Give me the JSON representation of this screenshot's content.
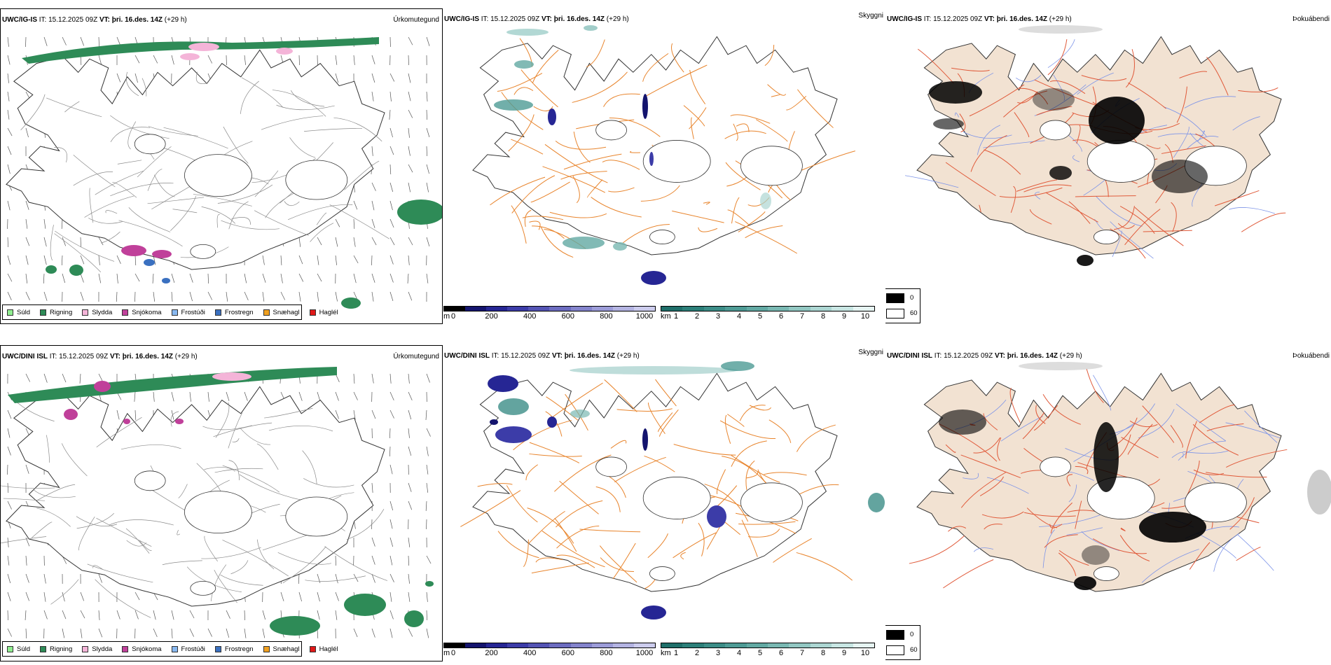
{
  "rows": [
    {
      "model": "UWC/IG-IS",
      "it_label": "IT:",
      "it_value": "15.12.2025 09Z",
      "vt_label": "VT:",
      "vt_value": "þri. 16.des. 14Z",
      "lead": "(+29 h)"
    },
    {
      "model": "UWC/DINI ISL",
      "it_label": "IT:",
      "it_value": "15.12.2025 09Z",
      "vt_label": "VT:",
      "vt_value": "þri. 16.des. 14Z",
      "lead": "(+29 h)"
    }
  ],
  "panel_titles": {
    "precip_type": "Úrkomutegund",
    "visibility": "Skyggni",
    "fog": "Þokuábendi"
  },
  "precip_legend": [
    {
      "label": "Súld",
      "color": "#90ee90"
    },
    {
      "label": "Rigning",
      "color": "#2e8b57"
    },
    {
      "label": "Slydda",
      "color": "#f4b4d8"
    },
    {
      "label": "Snjókoma",
      "color": "#c0409a"
    },
    {
      "label": "Frostúði",
      "color": "#88b8f0"
    },
    {
      "label": "Frostregn",
      "color": "#3a70c0"
    },
    {
      "label": "Snæhagl",
      "color": "#f0a020"
    },
    {
      "label": "Haglél",
      "color": "#e01818"
    }
  ],
  "visibility_m": {
    "unit": "m",
    "ticks": [
      "0",
      "200",
      "400",
      "600",
      "800",
      "1000"
    ],
    "colors": [
      "#000000",
      "#14146e",
      "#262694",
      "#3c3ca8",
      "#5454b4",
      "#6c6cc0",
      "#8484cc",
      "#9c9cd8",
      "#b4b4e2",
      "#cccced"
    ]
  },
  "visibility_km": {
    "unit": "km",
    "ticks": [
      "1",
      "2",
      "3",
      "4",
      "5",
      "6",
      "7",
      "8",
      "9",
      "10"
    ],
    "colors": [
      "#1f6f6a",
      "#2c7f79",
      "#3c8d87",
      "#4e9b95",
      "#62a9a3",
      "#79b8b2",
      "#92c7c2",
      "#acd6d2",
      "#c8e6e3",
      "#e6f4f2"
    ]
  },
  "fog_legend": {
    "high": "0",
    "low": "60",
    "high_color": "#000000",
    "low_color": "#ffffff"
  },
  "map_colors": {
    "coast": "#333333",
    "road_light": "#8a8a8a",
    "road_orange": "#e8842c",
    "road_red": "#e05a3a",
    "land_fog": "#f2e2d2",
    "river": "#7d94e8"
  }
}
